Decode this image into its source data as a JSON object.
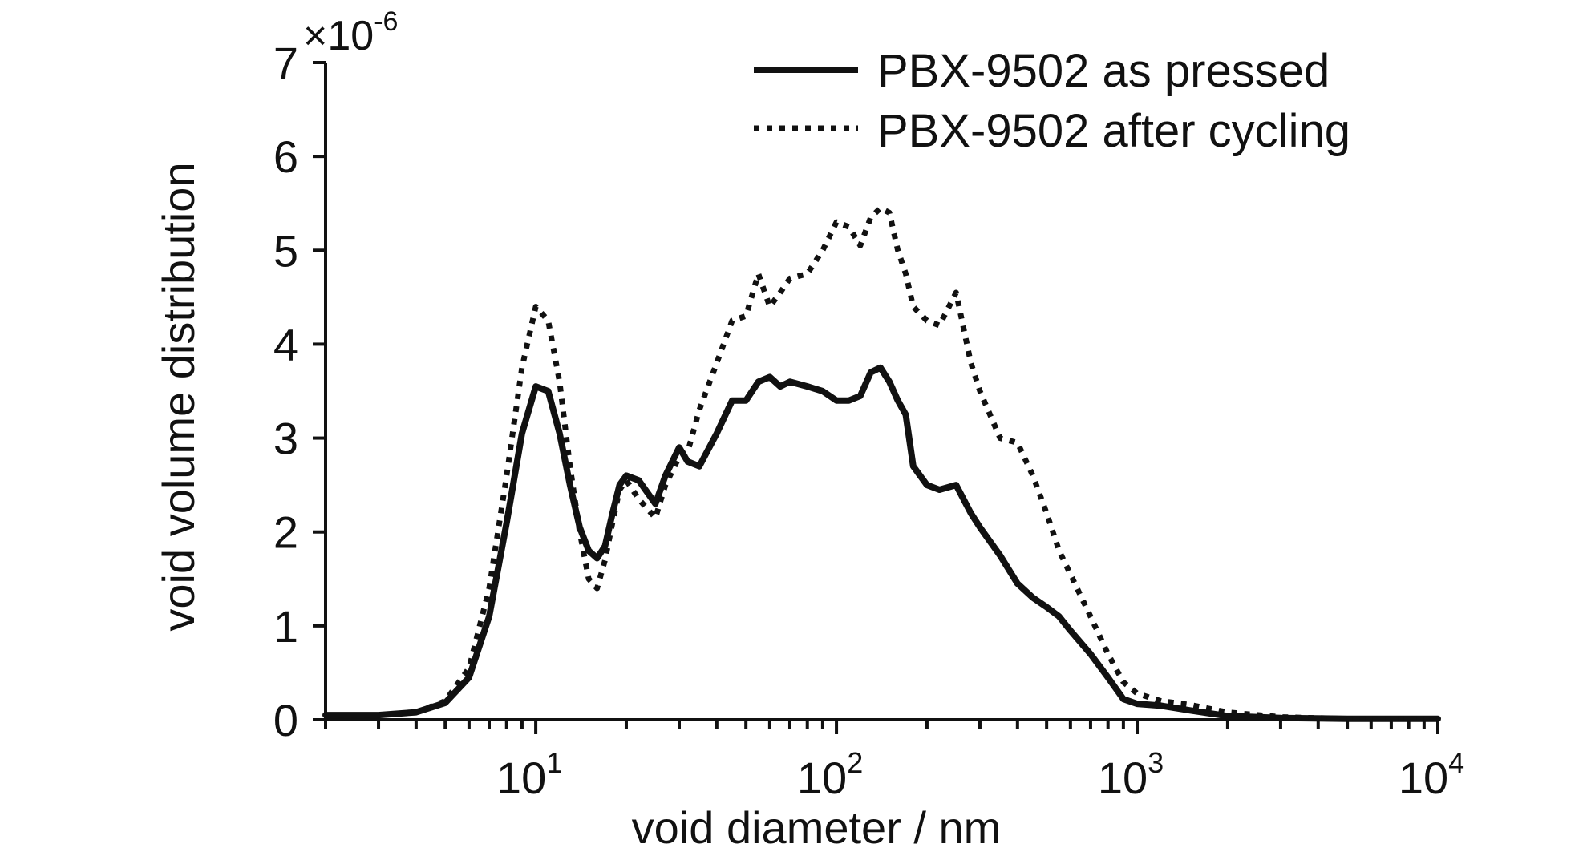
{
  "chart_data": {
    "type": "line",
    "title": "",
    "xlabel": "void diameter / nm",
    "ylabel": "void volume distribution",
    "y_multiplier": {
      "base": "×10",
      "exponent": "-6"
    },
    "x_scale": "log",
    "xlim": [
      2,
      10000
    ],
    "ylim": [
      0,
      7
    ],
    "x_ticks": [
      {
        "base": "10",
        "exp": "1",
        "value": 10
      },
      {
        "base": "10",
        "exp": "2",
        "value": 100
      },
      {
        "base": "10",
        "exp": "3",
        "value": 1000
      },
      {
        "base": "10",
        "exp": "4",
        "value": 10000
      }
    ],
    "y_ticks": [
      "0",
      "1",
      "2",
      "3",
      "4",
      "5",
      "6",
      "7"
    ],
    "grid": false,
    "legend_position": "top-right",
    "colors": {
      "series": "#111111",
      "axis": "#111111",
      "background": "#ffffff"
    },
    "series": [
      {
        "name": "PBX-9502 as pressed",
        "style": "solid",
        "x": [
          2,
          3,
          4,
          5,
          6,
          7,
          8,
          9,
          10,
          11,
          12,
          13,
          14,
          15,
          16,
          17,
          18,
          19,
          20,
          22,
          25,
          27,
          30,
          32,
          35,
          40,
          45,
          50,
          55,
          60,
          65,
          70,
          80,
          90,
          100,
          110,
          120,
          130,
          140,
          150,
          160,
          170,
          180,
          200,
          220,
          250,
          280,
          300,
          350,
          400,
          450,
          500,
          550,
          600,
          700,
          800,
          900,
          1000,
          1200,
          1500,
          2000,
          3000,
          5000,
          10000
        ],
        "y": [
          0.05,
          0.05,
          0.08,
          0.18,
          0.45,
          1.1,
          2.1,
          3.05,
          3.55,
          3.5,
          3.05,
          2.5,
          2.05,
          1.8,
          1.72,
          1.85,
          2.2,
          2.5,
          2.6,
          2.55,
          2.3,
          2.6,
          2.9,
          2.75,
          2.7,
          3.05,
          3.4,
          3.4,
          3.6,
          3.65,
          3.55,
          3.6,
          3.55,
          3.5,
          3.4,
          3.4,
          3.45,
          3.7,
          3.75,
          3.6,
          3.4,
          3.25,
          2.7,
          2.5,
          2.45,
          2.5,
          2.2,
          2.05,
          1.75,
          1.45,
          1.3,
          1.2,
          1.1,
          0.95,
          0.7,
          0.45,
          0.22,
          0.17,
          0.15,
          0.1,
          0.04,
          0.02,
          0.01,
          0.01
        ]
      },
      {
        "name": "PBX-9502 after cycling",
        "style": "dotted",
        "x": [
          2,
          3,
          4,
          5,
          6,
          7,
          8,
          9,
          10,
          11,
          12,
          13,
          14,
          15,
          16,
          17,
          18,
          19,
          20,
          22,
          25,
          27,
          30,
          32,
          35,
          40,
          45,
          50,
          55,
          60,
          65,
          70,
          80,
          90,
          100,
          110,
          120,
          130,
          140,
          150,
          160,
          170,
          180,
          200,
          220,
          250,
          280,
          300,
          350,
          400,
          450,
          500,
          550,
          600,
          700,
          800,
          900,
          1000,
          1200,
          1500,
          2000,
          3000,
          5000,
          10000
        ],
        "y": [
          0.05,
          0.05,
          0.08,
          0.2,
          0.55,
          1.4,
          2.6,
          3.75,
          4.4,
          4.25,
          3.6,
          2.7,
          2.0,
          1.5,
          1.4,
          1.7,
          2.1,
          2.45,
          2.55,
          2.35,
          2.15,
          2.5,
          2.8,
          2.85,
          3.3,
          3.8,
          4.25,
          4.3,
          4.75,
          4.4,
          4.55,
          4.7,
          4.75,
          5.0,
          5.3,
          5.25,
          5.05,
          5.35,
          5.45,
          5.4,
          5.0,
          4.75,
          4.4,
          4.25,
          4.2,
          4.55,
          3.8,
          3.5,
          3.0,
          2.95,
          2.6,
          2.2,
          1.8,
          1.55,
          1.1,
          0.7,
          0.4,
          0.28,
          0.2,
          0.16,
          0.08,
          0.03,
          0.01,
          0.01
        ]
      }
    ]
  }
}
